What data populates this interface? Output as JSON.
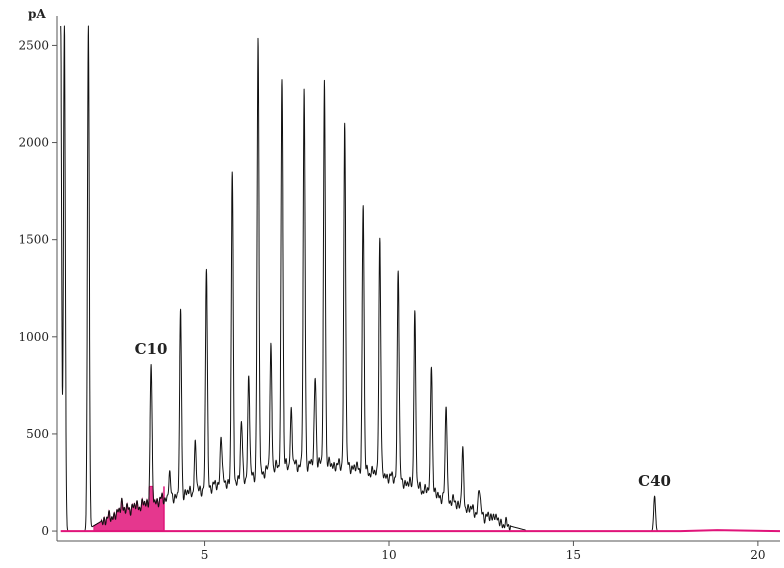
{
  "chart_data": {
    "type": "line",
    "title": "",
    "xlabel": "",
    "ylabel": "pA",
    "xlim": [
      1.0,
      20.6
    ],
    "ylim": [
      -10,
      2600
    ],
    "x_ticks": [
      5,
      10,
      15,
      20
    ],
    "y_ticks": [
      0,
      500,
      1000,
      1500,
      2000,
      2500
    ],
    "grid": false,
    "legend": "none",
    "colors": {
      "trace": "#111111",
      "baseline": "#e0147a",
      "axis": "#555555"
    },
    "annotations": [
      {
        "text": "C10",
        "x": 3.55,
        "y": 860
      },
      {
        "text": "C40",
        "x": 17.2,
        "y": 180
      }
    ],
    "hump": [
      [
        1.8,
        5
      ],
      [
        2.2,
        50
      ],
      [
        3.0,
        120
      ],
      [
        4.0,
        170
      ],
      [
        5.0,
        220
      ],
      [
        6.0,
        270
      ],
      [
        7.0,
        330
      ],
      [
        8.0,
        350
      ],
      [
        9.0,
        330
      ],
      [
        10.0,
        280
      ],
      [
        11.0,
        210
      ],
      [
        12.0,
        130
      ],
      [
        12.6,
        80
      ],
      [
        13.2,
        30
      ],
      [
        13.7,
        5
      ]
    ],
    "solvent_peaks": [
      {
        "x": 1.1,
        "y": 2600
      },
      {
        "x": 1.2,
        "y": 2600
      },
      {
        "x": 1.85,
        "y": 2600
      }
    ],
    "peaks": [
      {
        "x": 2.75,
        "y": 170
      },
      {
        "x": 3.55,
        "y": 860
      },
      {
        "x": 4.05,
        "y": 290
      },
      {
        "x": 4.35,
        "y": 1120
      },
      {
        "x": 4.75,
        "y": 440
      },
      {
        "x": 5.05,
        "y": 1360
      },
      {
        "x": 5.45,
        "y": 500
      },
      {
        "x": 5.75,
        "y": 1840
      },
      {
        "x": 6.0,
        "y": 560
      },
      {
        "x": 6.2,
        "y": 790
      },
      {
        "x": 6.45,
        "y": 2510
      },
      {
        "x": 6.8,
        "y": 950
      },
      {
        "x": 7.1,
        "y": 2340
      },
      {
        "x": 7.35,
        "y": 620
      },
      {
        "x": 7.7,
        "y": 2250
      },
      {
        "x": 8.0,
        "y": 800
      },
      {
        "x": 8.25,
        "y": 2310
      },
      {
        "x": 8.8,
        "y": 2100
      },
      {
        "x": 9.3,
        "y": 1680
      },
      {
        "x": 9.75,
        "y": 1510
      },
      {
        "x": 10.25,
        "y": 1360
      },
      {
        "x": 10.7,
        "y": 1120
      },
      {
        "x": 11.15,
        "y": 880
      },
      {
        "x": 11.55,
        "y": 650
      },
      {
        "x": 12.0,
        "y": 400
      },
      {
        "x": 12.45,
        "y": 220
      },
      {
        "x": 12.85,
        "y": 100
      },
      {
        "x": 17.2,
        "y": 180
      }
    ],
    "baseline": [
      [
        1.1,
        0
      ],
      [
        17.9,
        0
      ],
      [
        18.9,
        5
      ],
      [
        20.6,
        0
      ]
    ]
  }
}
